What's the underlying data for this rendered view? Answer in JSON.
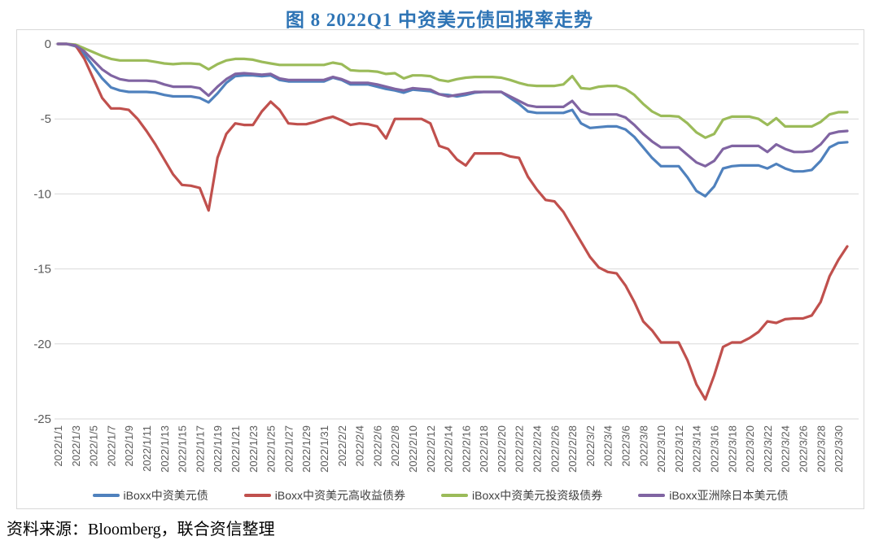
{
  "title": "图 8  2022Q1 中资美元债回报率走势",
  "title_color": "#2E74B5",
  "source_note": "资料来源：Bloomberg，联合资信整理",
  "colors": {
    "grid": "#D9D9D9",
    "axis_label": "#595959",
    "chart_border": "#D8D8D8",
    "series_blue": "#4F81BD",
    "series_red": "#C0504D",
    "series_green": "#9BBB59",
    "series_purple": "#8064A2"
  },
  "chart_data": {
    "type": "line",
    "title": "图 8  2022Q1 中资美元债回报率走势",
    "xlabel": "",
    "ylabel": "",
    "ylim": [
      -25,
      0
    ],
    "y_ticks": [
      0,
      -5,
      -10,
      -15,
      -20,
      -25
    ],
    "grid": true,
    "legend_position": "bottom",
    "x_tick_every": 2,
    "x": [
      "2022/1/1",
      "2022/1/2",
      "2022/1/3",
      "2022/1/4",
      "2022/1/5",
      "2022/1/6",
      "2022/1/7",
      "2022/1/8",
      "2022/1/9",
      "2022/1/10",
      "2022/1/11",
      "2022/1/12",
      "2022/1/13",
      "2022/1/14",
      "2022/1/15",
      "2022/1/16",
      "2022/1/17",
      "2022/1/18",
      "2022/1/19",
      "2022/1/20",
      "2022/1/21",
      "2022/1/22",
      "2022/1/23",
      "2022/1/24",
      "2022/1/25",
      "2022/1/26",
      "2022/1/27",
      "2022/1/28",
      "2022/1/29",
      "2022/1/30",
      "2022/1/31",
      "2022/2/1",
      "2022/2/2",
      "2022/2/3",
      "2022/2/4",
      "2022/2/5",
      "2022/2/6",
      "2022/2/7",
      "2022/2/8",
      "2022/2/9",
      "2022/2/10",
      "2022/2/11",
      "2022/2/12",
      "2022/2/13",
      "2022/2/14",
      "2022/2/15",
      "2022/2/16",
      "2022/2/17",
      "2022/2/18",
      "2022/2/19",
      "2022/2/20",
      "2022/2/21",
      "2022/2/22",
      "2022/2/23",
      "2022/2/24",
      "2022/2/25",
      "2022/2/26",
      "2022/2/27",
      "2022/2/28",
      "2022/3/1",
      "2022/3/2",
      "2022/3/3",
      "2022/3/4",
      "2022/3/5",
      "2022/3/6",
      "2022/3/7",
      "2022/3/8",
      "2022/3/9",
      "2022/3/10",
      "2022/3/11",
      "2022/3/12",
      "2022/3/13",
      "2022/3/14",
      "2022/3/15",
      "2022/3/16",
      "2022/3/17",
      "2022/3/18",
      "2022/3/19",
      "2022/3/20",
      "2022/3/21",
      "2022/3/22",
      "2022/3/23",
      "2022/3/24",
      "2022/3/25",
      "2022/3/26",
      "2022/3/27",
      "2022/3/28",
      "2022/3/29",
      "2022/3/30",
      "2022/3/31"
    ],
    "series": [
      {
        "name": "iBoxx中资美元债",
        "color": "#4F81BD",
        "values": [
          0,
          0,
          -0.15,
          -0.7,
          -1.5,
          -2.3,
          -2.9,
          -3.1,
          -3.2,
          -3.2,
          -3.2,
          -3.25,
          -3.4,
          -3.5,
          -3.5,
          -3.5,
          -3.6,
          -3.9,
          -3.3,
          -2.6,
          -2.15,
          -2.1,
          -2.1,
          -2.15,
          -2.1,
          -2.4,
          -2.5,
          -2.5,
          -2.5,
          -2.5,
          -2.5,
          -2.25,
          -2.4,
          -2.7,
          -2.7,
          -2.7,
          -2.85,
          -3.0,
          -3.1,
          -3.25,
          -3.05,
          -3.1,
          -3.15,
          -3.35,
          -3.4,
          -3.5,
          -3.4,
          -3.25,
          -3.2,
          -3.2,
          -3.2,
          -3.6,
          -4.0,
          -4.5,
          -4.6,
          -4.6,
          -4.6,
          -4.6,
          -4.4,
          -5.3,
          -5.6,
          -5.55,
          -5.5,
          -5.5,
          -5.7,
          -6.2,
          -6.9,
          -7.6,
          -8.15,
          -8.15,
          -8.15,
          -8.9,
          -9.8,
          -10.15,
          -9.5,
          -8.3,
          -8.15,
          -8.1,
          -8.1,
          -8.1,
          -8.3,
          -8.0,
          -8.3,
          -8.5,
          -8.5,
          -8.4,
          -7.8,
          -6.9,
          -6.6,
          -6.55
        ]
      },
      {
        "name": "iBoxx中资美元高收益债券",
        "color": "#C0504D",
        "values": [
          0,
          0,
          -0.1,
          -1.0,
          -2.3,
          -3.6,
          -4.3,
          -4.3,
          -4.4,
          -5.0,
          -5.8,
          -6.7,
          -7.7,
          -8.7,
          -9.4,
          -9.45,
          -9.6,
          -11.1,
          -7.6,
          -6.0,
          -5.3,
          -5.4,
          -5.4,
          -4.5,
          -3.85,
          -4.4,
          -5.3,
          -5.35,
          -5.35,
          -5.2,
          -5.0,
          -4.85,
          -5.1,
          -5.4,
          -5.3,
          -5.35,
          -5.5,
          -6.3,
          -5.0,
          -5.0,
          -5.0,
          -5.0,
          -5.3,
          -6.8,
          -7.0,
          -7.7,
          -8.1,
          -7.3,
          -7.3,
          -7.3,
          -7.3,
          -7.5,
          -7.6,
          -8.85,
          -9.7,
          -10.4,
          -10.5,
          -11.2,
          -12.2,
          -13.2,
          -14.2,
          -14.9,
          -15.2,
          -15.3,
          -16.1,
          -17.2,
          -18.5,
          -19.1,
          -19.9,
          -19.9,
          -19.9,
          -21.1,
          -22.7,
          -23.7,
          -22.1,
          -20.2,
          -19.9,
          -19.9,
          -19.6,
          -19.2,
          -18.5,
          -18.6,
          -18.35,
          -18.3,
          -18.3,
          -18.1,
          -17.2,
          -15.5,
          -14.4,
          -13.5
        ]
      },
      {
        "name": "iBoxx中资美元投资级债券",
        "color": "#9BBB59",
        "values": [
          0,
          0,
          -0.05,
          -0.3,
          -0.55,
          -0.8,
          -1.0,
          -1.1,
          -1.1,
          -1.1,
          -1.1,
          -1.2,
          -1.3,
          -1.35,
          -1.3,
          -1.3,
          -1.35,
          -1.7,
          -1.35,
          -1.1,
          -1.0,
          -1.0,
          -1.05,
          -1.2,
          -1.3,
          -1.4,
          -1.4,
          -1.4,
          -1.4,
          -1.4,
          -1.4,
          -1.25,
          -1.35,
          -1.75,
          -1.8,
          -1.8,
          -1.85,
          -2.0,
          -1.95,
          -2.3,
          -2.1,
          -2.1,
          -2.15,
          -2.4,
          -2.5,
          -2.35,
          -2.25,
          -2.2,
          -2.2,
          -2.2,
          -2.25,
          -2.4,
          -2.6,
          -2.75,
          -2.8,
          -2.8,
          -2.8,
          -2.7,
          -2.15,
          -2.95,
          -3.0,
          -2.85,
          -2.8,
          -2.8,
          -3.0,
          -3.4,
          -4.0,
          -4.5,
          -4.8,
          -4.8,
          -4.85,
          -5.3,
          -5.9,
          -6.25,
          -6.0,
          -5.05,
          -4.85,
          -4.85,
          -4.85,
          -5.0,
          -5.4,
          -4.95,
          -5.5,
          -5.5,
          -5.5,
          -5.5,
          -5.2,
          -4.7,
          -4.55,
          -4.55
        ]
      },
      {
        "name": "iBoxx亚洲除日本美元债",
        "color": "#8064A2",
        "values": [
          0,
          0,
          -0.1,
          -0.5,
          -1.1,
          -1.7,
          -2.1,
          -2.35,
          -2.45,
          -2.45,
          -2.45,
          -2.5,
          -2.7,
          -2.85,
          -2.85,
          -2.85,
          -2.95,
          -3.45,
          -2.85,
          -2.35,
          -2.0,
          -1.95,
          -2.0,
          -2.05,
          -2.0,
          -2.3,
          -2.4,
          -2.4,
          -2.4,
          -2.4,
          -2.4,
          -2.2,
          -2.35,
          -2.6,
          -2.6,
          -2.6,
          -2.7,
          -2.85,
          -3.0,
          -3.1,
          -2.95,
          -3.0,
          -3.05,
          -3.35,
          -3.5,
          -3.4,
          -3.3,
          -3.2,
          -3.2,
          -3.2,
          -3.2,
          -3.5,
          -3.8,
          -4.1,
          -4.2,
          -4.2,
          -4.2,
          -4.2,
          -3.8,
          -4.5,
          -4.7,
          -4.7,
          -4.7,
          -4.7,
          -4.9,
          -5.4,
          -6.0,
          -6.5,
          -6.9,
          -6.9,
          -6.9,
          -7.4,
          -7.9,
          -8.15,
          -7.8,
          -7.0,
          -6.8,
          -6.8,
          -6.8,
          -6.8,
          -7.2,
          -6.7,
          -7.0,
          -7.2,
          -7.2,
          -7.15,
          -6.7,
          -6.0,
          -5.85,
          -5.8
        ]
      }
    ]
  }
}
